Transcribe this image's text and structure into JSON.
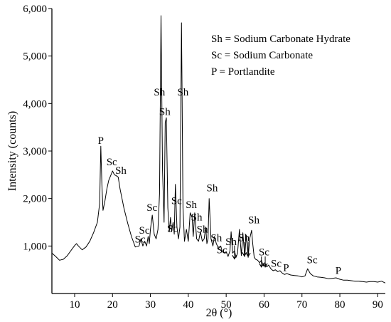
{
  "chart_data": {
    "type": "line",
    "xlabel": "2θ (°)",
    "ylabel": "Intensity (counts)",
    "xlim": [
      4,
      92
    ],
    "ylim": [
      0,
      6000
    ],
    "x_ticks": [
      10,
      20,
      30,
      40,
      50,
      60,
      70,
      80,
      90
    ],
    "y_ticks": [
      {
        "value": 1000,
        "label": "1,000"
      },
      {
        "value": 2000,
        "label": "2,000"
      },
      {
        "value": 3000,
        "label": "3,000"
      },
      {
        "value": 4000,
        "label": "4,000"
      },
      {
        "value": 5000,
        "label": "5,000"
      },
      {
        "value": 6000,
        "label": "6,000"
      }
    ],
    "grid": false,
    "legend_placement": "top-right",
    "legend": [
      "Sh = Sodium Carbonate Hydrate",
      "Sc = Sodium Carbonate",
      "P = Portlandite"
    ],
    "series": [
      {
        "color": "#000000",
        "x": [
          4,
          5,
          6,
          7,
          8,
          9,
          10,
          10.5,
          11,
          12,
          13,
          14,
          15,
          16,
          16.6,
          16.9,
          17.2,
          17.5,
          18,
          18.5,
          19,
          19.5,
          20,
          20.5,
          21,
          21.5,
          22,
          23,
          24,
          25,
          26,
          27,
          27.5,
          28,
          28.5,
          29,
          29.4,
          29.7,
          30,
          30.5,
          31,
          31.5,
          32,
          32.4,
          32.8,
          33.2,
          33.6,
          33.9,
          34.2,
          34.6,
          35,
          35.3,
          35.6,
          36,
          36.3,
          36.6,
          37,
          37.4,
          37.8,
          38.2,
          38.6,
          39,
          39.5,
          40,
          40.5,
          41,
          41.3,
          41.7,
          42.2,
          42.7,
          43.2,
          43.7,
          44.2,
          44.6,
          44.9,
          45.2,
          45.5,
          46,
          46.5,
          46.9,
          47.4,
          48,
          48.5,
          49,
          49.5,
          50,
          50.5,
          51,
          51.3,
          51.7,
          52.2,
          52.6,
          53,
          53.5,
          54,
          54.4,
          54.9,
          55.3,
          55.8,
          56.2,
          56.7,
          57,
          57.4,
          57.8,
          58.3,
          58.8,
          59.3,
          59.8,
          60.2,
          60.7,
          61.2,
          61.8,
          62.4,
          63,
          63.6,
          64.2,
          64.8,
          65.4,
          66,
          67,
          68,
          69,
          70,
          70.8,
          71.5,
          72.2,
          73,
          74,
          75,
          76,
          77,
          78,
          79,
          80,
          81,
          82,
          83,
          84,
          85,
          86,
          87,
          88,
          89,
          90,
          91,
          92
        ],
        "values": [
          850,
          780,
          700,
          720,
          790,
          900,
          1010,
          1050,
          1000,
          920,
          980,
          1100,
          1280,
          1500,
          1900,
          3100,
          2300,
          1750,
          1950,
          2200,
          2380,
          2480,
          2580,
          2500,
          2480,
          2450,
          2200,
          1800,
          1480,
          1200,
          980,
          1000,
          1150,
          1000,
          1100,
          1000,
          1200,
          1050,
          1350,
          1650,
          1250,
          1150,
          1350,
          2100,
          5850,
          2600,
          1500,
          3600,
          3700,
          1800,
          1300,
          1600,
          1300,
          1500,
          1250,
          2300,
          1400,
          1150,
          1400,
          5700,
          1800,
          1100,
          1350,
          1100,
          1700,
          1600,
          1200,
          1700,
          1150,
          1100,
          1300,
          1100,
          1150,
          1400,
          1050,
          1150,
          2000,
          1150,
          1000,
          1200,
          1050,
          950,
          1000,
          880,
          850,
          880,
          780,
          900,
          1300,
          850,
          900,
          760,
          850,
          1350,
          800,
          1280,
          780,
          1230,
          760,
          1150,
          1330,
          1050,
          760,
          720,
          700,
          650,
          700,
          580,
          650,
          560,
          600,
          520,
          480,
          500,
          460,
          480,
          430,
          400,
          420,
          390,
          380,
          370,
          350,
          370,
          520,
          420,
          370,
          350,
          340,
          330,
          310,
          320,
          330,
          300,
          280,
          280,
          270,
          260,
          260,
          250,
          240,
          250,
          250,
          240,
          260,
          220
        ]
      }
    ],
    "annotations": [
      {
        "text": "P",
        "x": 16.9,
        "y": 3150
      },
      {
        "text": "Sc",
        "x": 19.8,
        "y": 2700
      },
      {
        "text": "Sh",
        "x": 22.2,
        "y": 2520
      },
      {
        "text": "Sc",
        "x": 27.3,
        "y": 1070
      },
      {
        "text": "Sc",
        "x": 28.4,
        "y": 1260
      },
      {
        "text": "Sc",
        "x": 30.4,
        "y": 1740
      },
      {
        "text": "Sh",
        "x": 32.4,
        "y": 4170
      },
      {
        "text": "Sh",
        "x": 33.8,
        "y": 3760
      },
      {
        "text": "Sc",
        "x": 36.9,
        "y": 1880
      },
      {
        "text": "Sc",
        "x": 35.8,
        "y": 1300
      },
      {
        "text": "Sh",
        "x": 38.6,
        "y": 4170
      },
      {
        "text": "Sh",
        "x": 40.8,
        "y": 1800
      },
      {
        "text": "Sh",
        "x": 42.2,
        "y": 1540
      },
      {
        "text": "Sh",
        "x": 43.7,
        "y": 1280
      },
      {
        "text": "Sh",
        "x": 46.3,
        "y": 2150
      },
      {
        "text": "Sh",
        "x": 47.4,
        "y": 1100
      },
      {
        "text": "Sc",
        "x": 48.9,
        "y": 850
      },
      {
        "text": "Sh",
        "x": 51.3,
        "y": 1020
      },
      {
        "text": "Sh",
        "x": 54.7,
        "y": 1100
      },
      {
        "text": "Sh",
        "x": 57.3,
        "y": 1480
      },
      {
        "text": "Sc",
        "x": 60.0,
        "y": 800
      },
      {
        "text": "Sc",
        "x": 63.2,
        "y": 560
      },
      {
        "text": "P",
        "x": 65.8,
        "y": 470
      },
      {
        "text": "Sc",
        "x": 72.7,
        "y": 640
      },
      {
        "text": "P",
        "x": 79.6,
        "y": 410
      }
    ],
    "arrows": [
      {
        "x": 52.2,
        "y_from": 1010,
        "y_to": 730
      },
      {
        "x": 54.8,
        "y_from": 1080,
        "y_to": 790
      },
      {
        "x": 55.8,
        "y_from": 1080,
        "y_to": 780
      },
      {
        "x": 59.3,
        "y_from": 780,
        "y_to": 560
      },
      {
        "x": 60.3,
        "y_from": 780,
        "y_to": 560
      }
    ]
  }
}
